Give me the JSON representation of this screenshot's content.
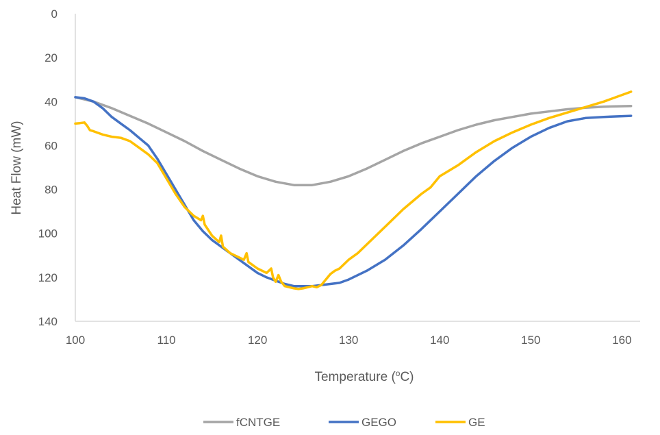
{
  "chart_data": {
    "type": "line",
    "title": "",
    "xlabel": "Temperature",
    "xlabel_unit_prefix": "(",
    "xlabel_unit_sup": "o",
    "xlabel_unit_suffix": "C)",
    "ylabel": "Heat Flow (mW)",
    "xlim": [
      100,
      162
    ],
    "ylim": [
      0,
      140
    ],
    "y_reversed": true,
    "x_ticks": [
      "100",
      "110",
      "120",
      "130",
      "140",
      "150",
      "160"
    ],
    "y_ticks": [
      "0",
      "20",
      "40",
      "60",
      "80",
      "100",
      "120",
      "140"
    ],
    "grid": false,
    "legend_position": "bottom",
    "series": [
      {
        "name": "fCNTGE",
        "color": "#a5a5a5",
        "x": [
          100,
          102,
          104,
          106,
          108,
          110,
          112,
          114,
          116,
          118,
          120,
          122,
          124,
          126,
          128,
          130,
          132,
          134,
          136,
          138,
          140,
          142,
          144,
          146,
          148,
          150,
          152,
          154,
          156,
          158,
          161
        ],
        "y": [
          38,
          40,
          43,
          46.5,
          50,
          54,
          58,
          62.5,
          66.5,
          70.5,
          74,
          76.5,
          78,
          78,
          76.5,
          74,
          70.5,
          66.5,
          62.5,
          59,
          56,
          53,
          50.5,
          48.5,
          47,
          45.5,
          44.5,
          43.5,
          42.8,
          42.3,
          42
        ]
      },
      {
        "name": "GEGO",
        "color": "#4472c4",
        "x": [
          100,
          101,
          102,
          103,
          104,
          105,
          106,
          107,
          108,
          109,
          110,
          111,
          112,
          113,
          114,
          115,
          116,
          117,
          118,
          119,
          120,
          121,
          122,
          123,
          124,
          125,
          126,
          127,
          128,
          129,
          130,
          132,
          134,
          136,
          138,
          140,
          142,
          144,
          146,
          148,
          150,
          152,
          154,
          156,
          158,
          161
        ],
        "y": [
          38,
          38.5,
          40,
          43,
          47,
          50,
          53,
          56.5,
          60,
          66,
          73,
          80,
          87,
          94,
          99,
          103,
          106,
          109,
          112,
          115,
          118,
          120,
          121.5,
          123,
          124,
          124,
          124,
          123.5,
          123,
          122.5,
          121,
          117,
          112,
          105.5,
          98,
          90,
          82,
          74,
          67,
          61,
          56,
          52,
          49,
          47.5,
          47,
          46.5
        ]
      },
      {
        "name": "GE",
        "color": "#ffc000",
        "x": [
          100,
          100.5,
          101,
          101.3,
          101.6,
          102,
          103,
          104,
          105,
          106,
          107,
          108,
          109,
          110,
          111,
          112,
          113,
          113.8,
          114,
          114.2,
          115,
          115.8,
          116,
          116.2,
          117,
          118,
          118.5,
          118.8,
          119,
          120,
          121,
          121.5,
          121.7,
          122,
          122.3,
          122.6,
          123,
          123.5,
          124,
          124.5,
          125,
          125.5,
          126,
          126.5,
          127,
          127.5,
          128,
          128.5,
          129,
          130,
          131,
          132,
          134,
          136,
          138,
          139,
          140,
          142,
          144,
          146,
          148,
          150,
          152,
          154,
          156,
          158,
          161
        ],
        "y": [
          50,
          49.8,
          49.5,
          51,
          53,
          53.5,
          55,
          56,
          56.5,
          58,
          61,
          64,
          68,
          75,
          82,
          88,
          92,
          94,
          92,
          96,
          101,
          104,
          101,
          106,
          109,
          111,
          112,
          109,
          113,
          116,
          118,
          116,
          120,
          122,
          119,
          122,
          124,
          124.5,
          125,
          125.3,
          125,
          124.5,
          124,
          124.5,
          123.5,
          121,
          118.5,
          117,
          116,
          112,
          109,
          105,
          97,
          89,
          82,
          79,
          74,
          69,
          63,
          58,
          54,
          50.5,
          47.5,
          45,
          42.5,
          40,
          35.5
        ]
      }
    ]
  }
}
